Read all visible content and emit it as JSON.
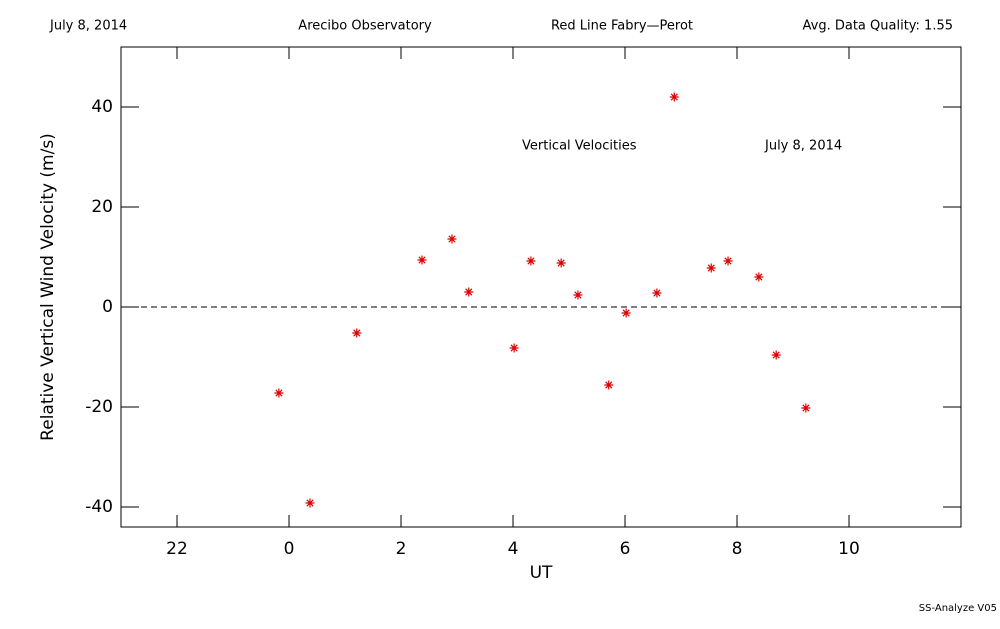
{
  "chart_data": {
    "type": "scatter",
    "header": [
      "July 8, 2014",
      "Arecibo Observatory",
      "Red Line Fabry—Perot",
      "Avg. Data Quality: 1.55"
    ],
    "annotations": [
      "Vertical Velocities",
      "July 8, 2014"
    ],
    "footer": "SS-Analyze V05",
    "x_label": "UT",
    "y_label": "Relative Vertical Wind Velocity (m/s)",
    "series": [
      {
        "name": "Vertical Velocities",
        "color": "#dd0000",
        "x": [
          -0.18,
          0.375,
          1.21,
          2.375,
          2.91,
          3.21,
          4.02,
          4.32,
          4.86,
          5.16,
          5.71,
          6.02,
          6.57,
          6.88,
          7.54,
          7.84,
          8.39,
          8.7,
          9.23
        ],
        "values": [
          -17.2,
          -39.2,
          -5.2,
          9.4,
          13.6,
          3.0,
          -8.2,
          9.2,
          8.8,
          2.4,
          -15.6,
          -1.2,
          2.8,
          42,
          7.8,
          9.2,
          6.0,
          -9.6,
          -20.2
        ]
      }
    ],
    "reference_line": 0,
    "xlim": [
      -3,
      12
    ],
    "ylim": [
      -44,
      52
    ],
    "xticks": [
      {
        "value": -2,
        "label": "22"
      },
      0,
      2,
      4,
      6,
      8,
      10
    ],
    "yticks": [
      -40,
      -20,
      0,
      20,
      40
    ]
  }
}
